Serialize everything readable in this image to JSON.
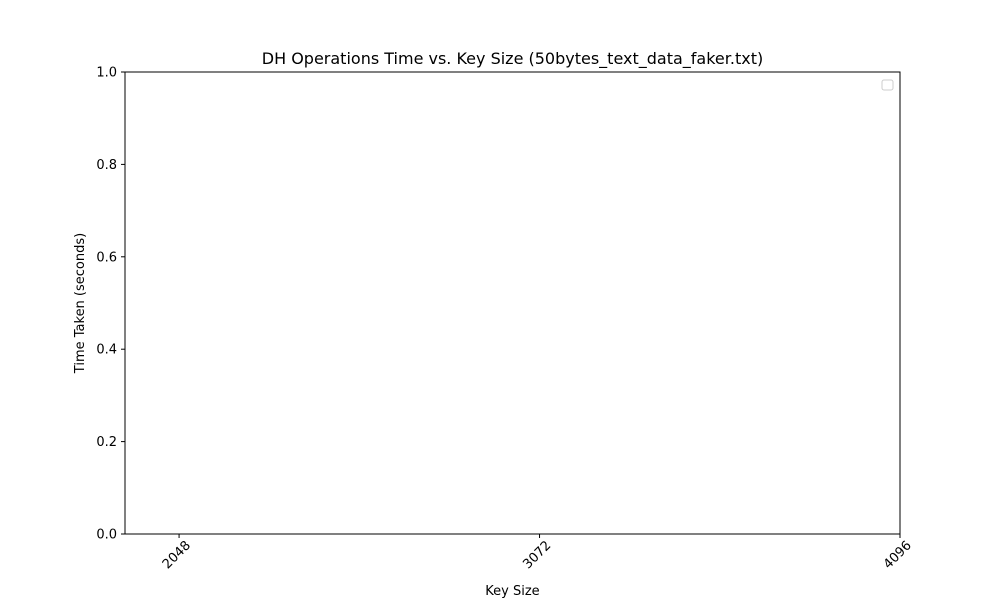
{
  "chart_data": {
    "type": "line",
    "title": "DH Operations Time vs. Key Size (50bytes_text_data_faker.txt)",
    "xlabel": "Key Size",
    "ylabel": "Time Taken (seconds)",
    "x": [
      2048,
      3072,
      4096
    ],
    "x_tick_labels": [
      "2048",
      "3072",
      "4096"
    ],
    "x_tick_rotation_deg": 45,
    "xlim": [
      1894.4,
      4096
    ],
    "ylim": [
      0,
      1
    ],
    "y_ticks": [
      0.0,
      0.2,
      0.4,
      0.6,
      0.8,
      1.0
    ],
    "y_tick_labels": [
      "0.0",
      "0.2",
      "0.4",
      "0.6",
      "0.8",
      "1.0"
    ],
    "series": [],
    "grid": false,
    "legend": {
      "placement": "top-right",
      "entries": []
    }
  }
}
